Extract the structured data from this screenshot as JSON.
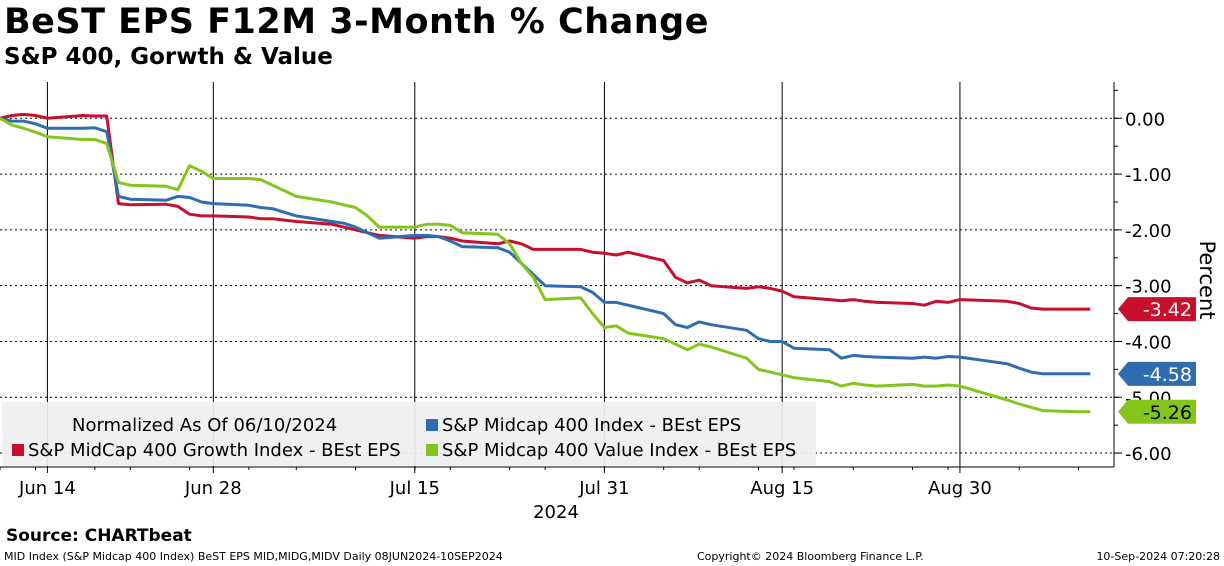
{
  "header": {
    "title": "BeST EPS F12M 3-Month % Change",
    "subtitle": "S&P 400, Gorwth & Value"
  },
  "footer": {
    "source": "Source: CHARTbeat",
    "ticker_line": "MID Index (S&P Midcap 400 Index) BeST EPS MID,MIDG,MIDV  Daily 08JUN2024-10SEP2024",
    "copyright": "Copyright© 2024 Bloomberg Finance L.P.",
    "timestamp": "10-Sep-2024 07:20:28"
  },
  "chart_data": {
    "type": "line",
    "ylabel": "Percent",
    "xlabel": "2024",
    "ylim": [
      -6.25,
      0.65
    ],
    "yticks": [
      0,
      -1,
      -2,
      -3,
      -4,
      -5,
      -6
    ],
    "ytick_labels": [
      "0.00",
      "-1.00",
      "-2.00",
      "-3.00",
      "-4.00",
      "-5.00",
      "-6.00"
    ],
    "xticks": [
      {
        "date": "2024-06-14",
        "label": "Jun 14"
      },
      {
        "date": "2024-06-28",
        "label": "Jun 28"
      },
      {
        "date": "2024-07-15",
        "label": "Jul 15"
      },
      {
        "date": "2024-07-31",
        "label": "Jul 31"
      },
      {
        "date": "2024-08-15",
        "label": "Aug 15"
      },
      {
        "date": "2024-08-30",
        "label": "Aug 30"
      }
    ],
    "xlim": [
      "2024-06-10",
      "2024-09-12"
    ],
    "legend_title": "Normalized As Of 06/10/2024",
    "legend_position": "bottom-left",
    "grid": true,
    "x": [
      "2024-06-10",
      "2024-06-11",
      "2024-06-12",
      "2024-06-13",
      "2024-06-14",
      "2024-06-17",
      "2024-06-18",
      "2024-06-19",
      "2024-06-20",
      "2024-06-21",
      "2024-06-24",
      "2024-06-25",
      "2024-06-26",
      "2024-06-27",
      "2024-06-28",
      "2024-07-01",
      "2024-07-02",
      "2024-07-03",
      "2024-07-05",
      "2024-07-08",
      "2024-07-09",
      "2024-07-10",
      "2024-07-11",
      "2024-07-12",
      "2024-07-15",
      "2024-07-16",
      "2024-07-17",
      "2024-07-18",
      "2024-07-19",
      "2024-07-22",
      "2024-07-23",
      "2024-07-24",
      "2024-07-25",
      "2024-07-26",
      "2024-07-29",
      "2024-07-30",
      "2024-07-31",
      "2024-08-01",
      "2024-08-02",
      "2024-08-05",
      "2024-08-06",
      "2024-08-07",
      "2024-08-08",
      "2024-08-09",
      "2024-08-12",
      "2024-08-13",
      "2024-08-14",
      "2024-08-15",
      "2024-08-16",
      "2024-08-19",
      "2024-08-20",
      "2024-08-21",
      "2024-08-22",
      "2024-08-23",
      "2024-08-26",
      "2024-08-27",
      "2024-08-28",
      "2024-08-29",
      "2024-08-30",
      "2024-09-03",
      "2024-09-04",
      "2024-09-05",
      "2024-09-06",
      "2024-09-09",
      "2024-09-10"
    ],
    "series": [
      {
        "name": "S&P Midcap 400 Index - BEst EPS",
        "color": "#2f6db0",
        "last_label": "-4.58",
        "values": [
          0.0,
          -0.05,
          -0.05,
          -0.1,
          -0.18,
          -0.18,
          -0.17,
          -0.24,
          -1.4,
          -1.45,
          -1.47,
          -1.4,
          -1.42,
          -1.5,
          -1.53,
          -1.56,
          -1.6,
          -1.62,
          -1.75,
          -1.85,
          -1.88,
          -1.95,
          -2.05,
          -2.15,
          -2.1,
          -2.1,
          -2.12,
          -2.2,
          -2.3,
          -2.32,
          -2.4,
          -2.6,
          -2.8,
          -3.0,
          -3.02,
          -3.12,
          -3.3,
          -3.3,
          -3.35,
          -3.5,
          -3.7,
          -3.75,
          -3.65,
          -3.7,
          -3.8,
          -3.95,
          -4.0,
          -4.0,
          -4.12,
          -4.15,
          -4.3,
          -4.25,
          -4.27,
          -4.28,
          -4.3,
          -4.28,
          -4.3,
          -4.27,
          -4.28,
          -4.4,
          -4.48,
          -4.55,
          -4.58,
          -4.58,
          -4.58
        ]
      },
      {
        "name": "S&P MidCap 400 Growth Index - BEst EPS",
        "color": "#c8102e",
        "last_label": "-3.42",
        "values": [
          0.0,
          0.05,
          0.07,
          0.05,
          0.0,
          0.05,
          0.04,
          0.04,
          -1.53,
          -1.55,
          -1.54,
          -1.58,
          -1.72,
          -1.75,
          -1.75,
          -1.77,
          -1.8,
          -1.8,
          -1.85,
          -1.9,
          -1.95,
          -2.0,
          -2.05,
          -2.1,
          -2.15,
          -2.12,
          -2.12,
          -2.15,
          -2.2,
          -2.25,
          -2.2,
          -2.25,
          -2.35,
          -2.35,
          -2.35,
          -2.4,
          -2.42,
          -2.45,
          -2.4,
          -2.55,
          -2.85,
          -2.95,
          -2.9,
          -3.0,
          -3.05,
          -3.02,
          -3.05,
          -3.1,
          -3.2,
          -3.25,
          -3.27,
          -3.25,
          -3.28,
          -3.3,
          -3.32,
          -3.35,
          -3.28,
          -3.3,
          -3.25,
          -3.28,
          -3.32,
          -3.4,
          -3.42,
          -3.42,
          -3.42
        ]
      },
      {
        "name": "S&P Midcap 400 Value Index - BEst EPS",
        "color": "#84c51d",
        "last_label": "-5.26",
        "values": [
          0.0,
          -0.12,
          -0.18,
          -0.25,
          -0.33,
          -0.38,
          -0.38,
          -0.45,
          -1.15,
          -1.2,
          -1.22,
          -1.28,
          -0.85,
          -0.95,
          -1.08,
          -1.08,
          -1.1,
          -1.2,
          -1.4,
          -1.5,
          -1.55,
          -1.6,
          -1.75,
          -1.95,
          -1.95,
          -1.9,
          -1.9,
          -1.92,
          -2.05,
          -2.08,
          -2.25,
          -2.6,
          -2.85,
          -3.25,
          -3.22,
          -3.5,
          -3.75,
          -3.72,
          -3.85,
          -3.95,
          -4.05,
          -4.15,
          -4.05,
          -4.1,
          -4.3,
          -4.5,
          -4.55,
          -4.6,
          -4.65,
          -4.72,
          -4.8,
          -4.75,
          -4.78,
          -4.8,
          -4.77,
          -4.8,
          -4.8,
          -4.78,
          -4.8,
          -5.05,
          -5.12,
          -5.18,
          -5.24,
          -5.26,
          -5.26
        ]
      }
    ]
  }
}
